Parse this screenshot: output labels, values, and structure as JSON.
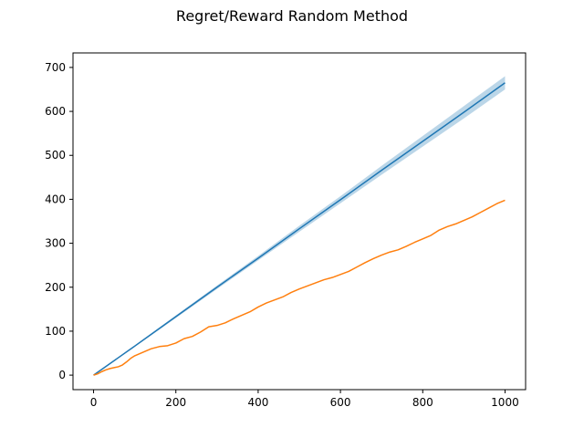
{
  "chart_data": {
    "type": "line",
    "title": "Regret/Reward Random Method",
    "xlabel": "",
    "ylabel": "",
    "xlim": [
      -50,
      1050
    ],
    "ylim": [
      -33,
      733
    ],
    "x_ticks": [
      0,
      200,
      400,
      600,
      800,
      1000
    ],
    "y_ticks": [
      0,
      100,
      200,
      300,
      400,
      500,
      600,
      700
    ],
    "grid": false,
    "legend": "none",
    "series": [
      {
        "color": "#1f77b4",
        "band_color": "#1f77b4",
        "x": [
          0,
          100,
          200,
          300,
          400,
          500,
          600,
          700,
          800,
          900,
          1000
        ],
        "values": [
          0,
          66,
          133,
          200,
          266,
          333,
          399,
          466,
          532,
          598,
          665
        ],
        "band_lower": [
          0,
          64,
          130,
          196,
          261,
          326,
          391,
          456,
          520,
          584,
          650
        ],
        "band_upper": [
          0,
          68,
          136,
          204,
          271,
          340,
          407,
          476,
          544,
          612,
          680
        ]
      },
      {
        "color": "#ff7f0e",
        "x": [
          0,
          10,
          20,
          30,
          40,
          50,
          60,
          70,
          80,
          90,
          100,
          120,
          140,
          160,
          180,
          200,
          220,
          240,
          260,
          280,
          300,
          320,
          340,
          360,
          380,
          400,
          420,
          440,
          460,
          480,
          500,
          520,
          540,
          560,
          580,
          600,
          620,
          640,
          660,
          680,
          700,
          720,
          740,
          760,
          780,
          800,
          820,
          840,
          860,
          880,
          900,
          920,
          940,
          960,
          980,
          1000
        ],
        "values": [
          0,
          3,
          8,
          12,
          15,
          17,
          19,
          23,
          30,
          38,
          44,
          52,
          60,
          65,
          67,
          73,
          83,
          88,
          98,
          110,
          113,
          119,
          128,
          136,
          144,
          155,
          164,
          171,
          178,
          188,
          196,
          203,
          210,
          217,
          222,
          229,
          236,
          246,
          256,
          265,
          273,
          280,
          285,
          293,
          302,
          310,
          318,
          330,
          338,
          344,
          352,
          360,
          370,
          380,
          390,
          398
        ]
      }
    ]
  }
}
